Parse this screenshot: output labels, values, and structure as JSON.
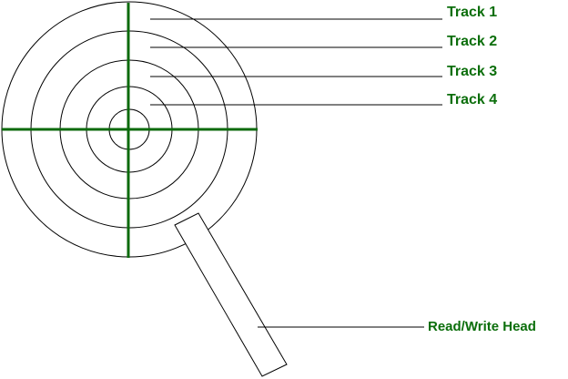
{
  "diagram": {
    "tracks": [
      {
        "label": "Track 1"
      },
      {
        "label": "Track 2"
      },
      {
        "label": "Track 3"
      },
      {
        "label": "Track 4"
      }
    ],
    "head_label": "Read/Write Head",
    "colors": {
      "label": "#0b6e0b",
      "axis": "#0b6a0b",
      "line": "#000000",
      "background": "#ffffff"
    }
  }
}
